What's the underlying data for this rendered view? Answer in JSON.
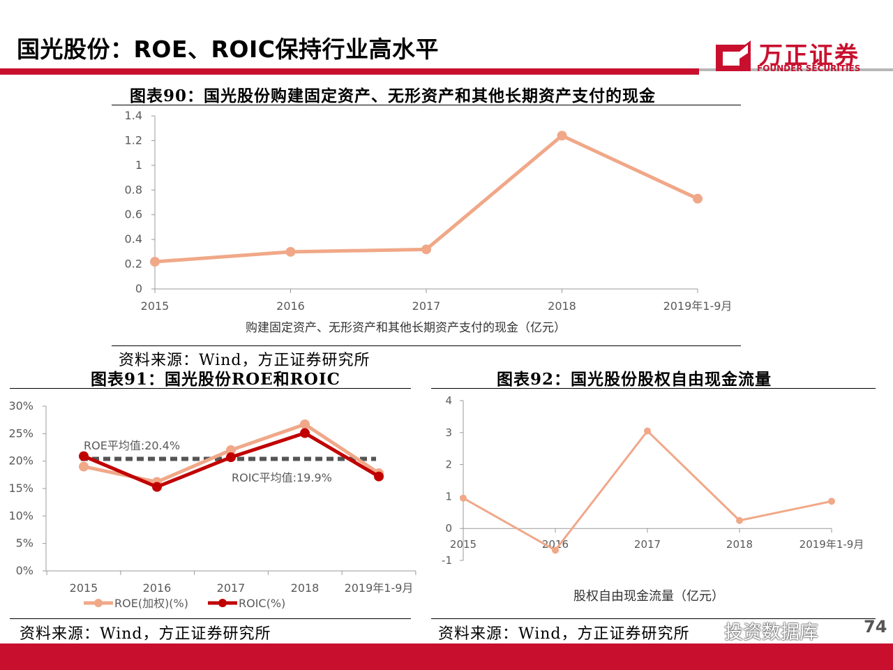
{
  "page": {
    "title": "国光股份：ROE、ROIC保持行业高水平",
    "logo_cn": "万正证券",
    "logo_en": "FOUNDER SECURITIES",
    "page_number": "74",
    "watermark": "投资数据库",
    "brand_color": "#c8102e"
  },
  "figures": [
    {
      "title": "图表90：国光股份购建固定资产、无形资产和其他长期资产支付的现金",
      "source": "资料来源：Wind，方正证券研究所"
    },
    {
      "title": "图表91：国光股份ROE和ROIC",
      "source": "资料来源：Wind，方正证券研究所"
    },
    {
      "title": "图表92：国光股份股权自由现金流量",
      "source": "资料来源：Wind，方正证券研究所"
    }
  ],
  "chart_data": [
    {
      "type": "line",
      "categories": [
        "2015",
        "2016",
        "2017",
        "2018",
        "2019年1-9月"
      ],
      "series": [
        {
          "name": "购建固定资产、无形资产和其他长期资产支付的现金（亿元）",
          "values": [
            0.22,
            0.3,
            0.32,
            1.24,
            0.73
          ],
          "color": "#f0a888"
        }
      ],
      "ylim": [
        0,
        1.4
      ],
      "yticks": [
        "0",
        "0.2",
        "0.4",
        "0.6",
        "0.8",
        "1",
        "1.2",
        "1.4"
      ],
      "grid": false,
      "legend": "bottom"
    },
    {
      "type": "line",
      "categories": [
        "2015",
        "2016",
        "2017",
        "2018",
        "2019年1-9月"
      ],
      "series": [
        {
          "name": "ROE(加权)(%)",
          "values": [
            19.0,
            16.2,
            22.0,
            26.7,
            17.8
          ],
          "color": "#f0a888"
        },
        {
          "name": "ROIC(%)",
          "values": [
            20.9,
            15.3,
            20.7,
            25.1,
            17.2
          ],
          "color": "#c00000"
        }
      ],
      "reference_lines": [
        {
          "label": "ROE平均值:20.4%",
          "value": 20.4
        },
        {
          "label": "ROIC平均值:19.9%",
          "value": 19.9
        }
      ],
      "ylim": [
        0,
        30
      ],
      "yticks": [
        "0%",
        "5%",
        "10%",
        "15%",
        "20%",
        "25%",
        "30%"
      ],
      "grid": false,
      "legend": "bottom"
    },
    {
      "type": "line",
      "categories": [
        "2015",
        "2016",
        "2017",
        "2018",
        "2019年1-9月"
      ],
      "series": [
        {
          "name": "股权自由现金流量（亿元）",
          "values": [
            0.95,
            -0.68,
            3.05,
            0.25,
            0.85
          ],
          "color": "#f0a888"
        }
      ],
      "ylim": [
        -1,
        4
      ],
      "yticks": [
        "-1",
        "0",
        "1",
        "2",
        "3",
        "4"
      ],
      "grid": false,
      "legend": "bottom"
    }
  ]
}
